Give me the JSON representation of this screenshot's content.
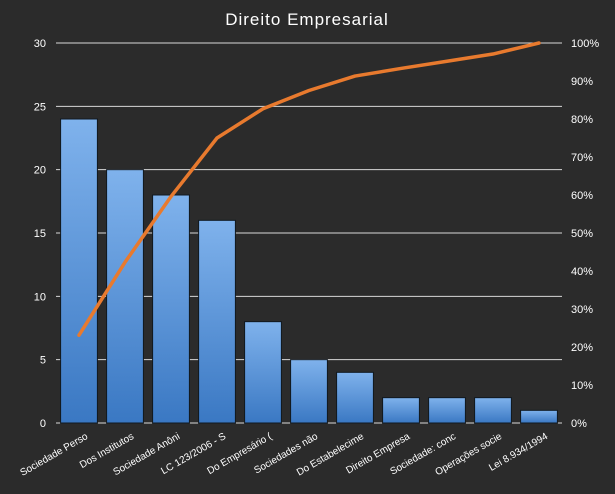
{
  "colors": {
    "background": "#2b2b2b",
    "bar_top": "#7fb2ec",
    "bar_bottom": "#3a78c3",
    "bar_edge": "#101820",
    "line": "#e87a2e",
    "grid": "#d8d8d8",
    "text": "#ffffff"
  },
  "chart_data": {
    "type": "bar",
    "title": "Direito  Empresarial",
    "xlabel": "",
    "ylabel": "",
    "categories": [
      "Sociedade Perso",
      "Dos Institutos",
      "Sociedade Anôni",
      "LC 123/2006 - S",
      "Do Empresário (",
      "Sociedades não",
      "Do Estabelecime",
      "Direito Empresa",
      "Sociedade: conc",
      "Operações socie",
      "Lei 8.934/1994"
    ],
    "series": [
      {
        "type": "bar",
        "axis": "left",
        "values": [
          24,
          20,
          18,
          16,
          8,
          5,
          4,
          2,
          2,
          2,
          1
        ]
      },
      {
        "type": "line",
        "axis": "right",
        "values": [
          23.1,
          42.3,
          59.6,
          75.0,
          82.7,
          87.5,
          91.3,
          93.3,
          95.2,
          97.1,
          100.0
        ]
      }
    ],
    "ylim": [
      0,
      30
    ],
    "y_ticks": [
      "0",
      "5",
      "10",
      "15",
      "20",
      "25",
      "30"
    ],
    "y2lim": [
      0,
      100
    ],
    "y2_ticks": [
      "0%",
      "10%",
      "20%",
      "30%",
      "40%",
      "50%",
      "60%",
      "70%",
      "80%",
      "90%",
      "100%"
    ],
    "grid": true,
    "legend": "none"
  }
}
